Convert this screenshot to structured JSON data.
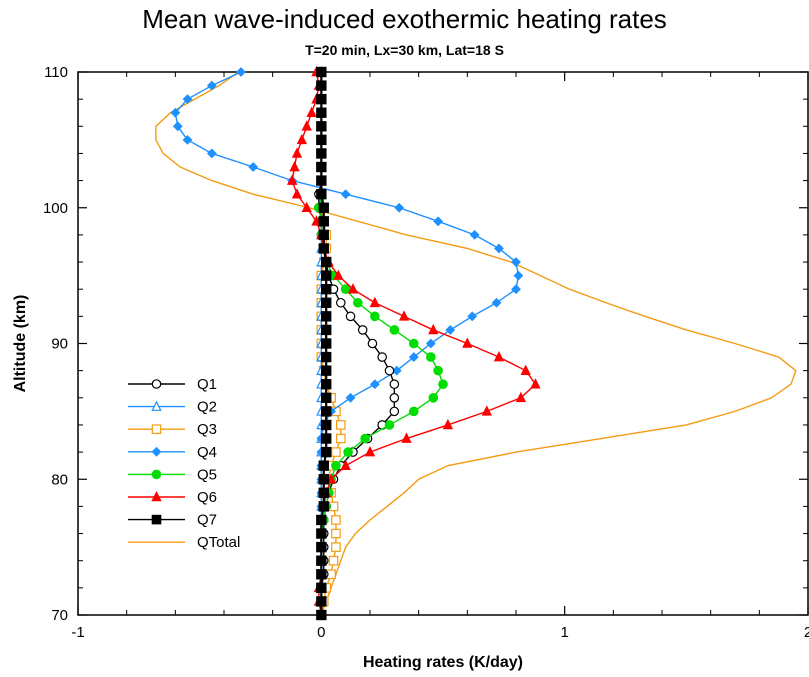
{
  "chart_data": {
    "type": "line",
    "title": "Mean wave-induced exothermic heating rates",
    "subtitle": "T=20 min, Lx=30 km, Lat=18 S",
    "xlabel": "Heating rates (K/day)",
    "ylabel": "Altitude (km)",
    "xlim": [
      -1,
      2
    ],
    "ylim": [
      70,
      110
    ],
    "x_ticks": [
      -1,
      0,
      1,
      2
    ],
    "y_ticks": [
      70,
      80,
      90,
      100,
      110
    ],
    "x_tick_labels": [
      "-1",
      "0",
      "1",
      "2"
    ],
    "y_tick_labels": [
      "70",
      "80",
      "90",
      "100",
      "110"
    ],
    "legend_position": "lower-left",
    "grid": false,
    "altitudes": [
      70,
      71,
      72,
      73,
      74,
      75,
      76,
      77,
      78,
      79,
      80,
      81,
      82,
      83,
      84,
      85,
      86,
      87,
      88,
      89,
      90,
      91,
      92,
      93,
      94,
      95,
      96,
      97,
      98,
      99,
      100,
      101,
      102,
      103,
      104,
      105,
      106,
      107,
      108,
      109,
      110
    ],
    "series": [
      {
        "name": "Q1",
        "color": "#000000",
        "marker": "circle-open",
        "x": [
          0,
          0,
          0,
          0.01,
          0.01,
          0.01,
          0.01,
          0.01,
          0.02,
          0.03,
          0.05,
          0.08,
          0.13,
          0.19,
          0.25,
          0.3,
          0.3,
          0.3,
          0.28,
          0.25,
          0.21,
          0.17,
          0.12,
          0.08,
          0.05,
          0.03,
          0.02,
          0.01,
          0,
          0,
          -0.01,
          -0.01,
          0,
          0,
          0,
          0,
          0,
          0,
          0,
          0,
          0
        ]
      },
      {
        "name": "Q2",
        "color": "#1e90ff",
        "marker": "triangle-open",
        "x": [
          0,
          0,
          0,
          0,
          0,
          0,
          0,
          0,
          0,
          0,
          0,
          0,
          0,
          0,
          0,
          0,
          0,
          0,
          0,
          0,
          0,
          0,
          0,
          0,
          0,
          0,
          0,
          0,
          0,
          0,
          0,
          0,
          0,
          0,
          0,
          0,
          0,
          0,
          0,
          0,
          0
        ]
      },
      {
        "name": "Q3",
        "color": "#f39c12",
        "marker": "square-open",
        "x": [
          0,
          0.01,
          0.02,
          0.04,
          0.05,
          0.06,
          0.06,
          0.06,
          0.05,
          0.04,
          0.03,
          0.04,
          0.06,
          0.08,
          0.08,
          0.06,
          0.04,
          0.02,
          0.01,
          0,
          0,
          0,
          0,
          0,
          0,
          0,
          0.01,
          0.02,
          0.02,
          0.01,
          0,
          0,
          0,
          0,
          0,
          0,
          0,
          0,
          0,
          0,
          0
        ]
      },
      {
        "name": "Q4",
        "color": "#1e90ff",
        "marker": "diamond",
        "x": [
          0,
          0,
          0,
          0,
          0,
          0,
          0,
          0,
          0,
          0,
          0,
          0,
          0,
          0,
          0.01,
          0.04,
          0.12,
          0.22,
          0.31,
          0.38,
          0.45,
          0.53,
          0.62,
          0.72,
          0.8,
          0.81,
          0.8,
          0.73,
          0.63,
          0.48,
          0.32,
          0.1,
          -0.12,
          -0.28,
          -0.45,
          -0.55,
          -0.59,
          -0.6,
          -0.55,
          -0.45,
          -0.33
        ]
      },
      {
        "name": "Q5",
        "color": "#00dd00",
        "marker": "circle",
        "x": [
          0,
          0,
          0,
          0,
          0,
          0,
          0,
          0.01,
          0.02,
          0.03,
          0.04,
          0.06,
          0.11,
          0.18,
          0.28,
          0.38,
          0.46,
          0.5,
          0.48,
          0.45,
          0.38,
          0.3,
          0.22,
          0.15,
          0.1,
          0.05,
          0.02,
          0.01,
          0,
          0,
          -0.01,
          0,
          0,
          0,
          0,
          0,
          0,
          0,
          0,
          0,
          0
        ]
      },
      {
        "name": "Q6",
        "color": "#ff0000",
        "marker": "triangle",
        "x": [
          0,
          -0.01,
          -0.01,
          0,
          0,
          0,
          0,
          0,
          0.01,
          0.02,
          0.04,
          0.1,
          0.2,
          0.35,
          0.52,
          0.68,
          0.82,
          0.88,
          0.84,
          0.73,
          0.6,
          0.46,
          0.34,
          0.22,
          0.13,
          0.07,
          0.03,
          0.01,
          0,
          -0.02,
          -0.06,
          -0.1,
          -0.12,
          -0.11,
          -0.1,
          -0.08,
          -0.06,
          -0.04,
          -0.02,
          -0.01,
          -0.02
        ]
      },
      {
        "name": "Q7",
        "color": "#000000",
        "marker": "square",
        "x": [
          0,
          0,
          0,
          0,
          0,
          0,
          0,
          0,
          0.01,
          0.01,
          0.01,
          0.01,
          0.02,
          0.02,
          0.02,
          0.02,
          0.02,
          0.02,
          0.02,
          0.02,
          0.02,
          0.02,
          0.02,
          0.02,
          0.02,
          0.02,
          0.02,
          0.01,
          0.01,
          0.01,
          0.01,
          0,
          0,
          0,
          0,
          0,
          0,
          0,
          0,
          0,
          0
        ]
      },
      {
        "name": "QTotal",
        "color": "#f39c12",
        "marker": "none",
        "x": [
          0,
          0.02,
          0.04,
          0.06,
          0.08,
          0.1,
          0.14,
          0.2,
          0.27,
          0.34,
          0.4,
          0.52,
          0.8,
          1.15,
          1.5,
          1.7,
          1.85,
          1.93,
          1.95,
          1.88,
          1.7,
          1.5,
          1.33,
          1.17,
          1.02,
          0.9,
          0.78,
          0.6,
          0.35,
          0.15,
          -0.05,
          -0.28,
          -0.45,
          -0.58,
          -0.65,
          -0.68,
          -0.68,
          -0.62,
          -0.52,
          -0.42,
          -0.34
        ]
      }
    ]
  }
}
